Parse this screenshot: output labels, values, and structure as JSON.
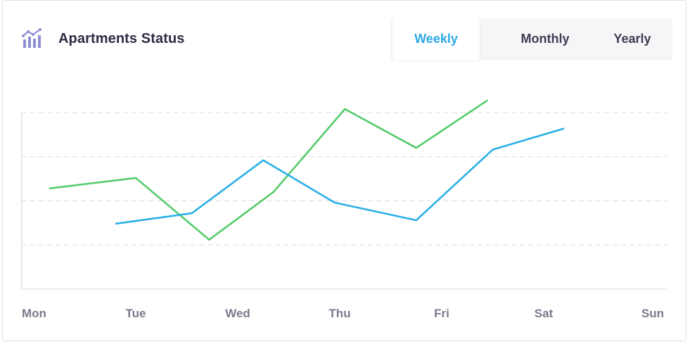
{
  "header": {
    "title": "Apartments Status",
    "icon": "bar-chart-trend-icon"
  },
  "tabs": [
    {
      "label": "Weekly",
      "active": true
    },
    {
      "label": "Monthly",
      "active": false
    },
    {
      "label": "Yearly",
      "active": false
    }
  ],
  "colors": {
    "accent": "#2aa9e4",
    "series_blue": "#2ab0e6",
    "series_green": "#55cc6b",
    "grid": "#dcdce2",
    "icon": "#8f8fd4"
  },
  "chart_data": {
    "type": "line",
    "categories": [
      "Mon",
      "Tue",
      "Wed",
      "Thu",
      "Fri",
      "Sat",
      "Sun"
    ],
    "ylim": [
      0,
      100
    ],
    "grid": true,
    "series": [
      {
        "color": "#55cc6b",
        "x": [
          0.15,
          1.0,
          1.72,
          2.35,
          3.05,
          3.75,
          4.45
        ],
        "y": [
          57,
          63,
          28,
          55,
          102,
          80,
          107
        ]
      },
      {
        "color": "#2ab0e6",
        "x": [
          0.8,
          1.55,
          2.25,
          2.95,
          3.75,
          4.5,
          5.2
        ],
        "y": [
          37,
          43,
          73,
          49,
          39,
          79,
          91
        ]
      }
    ]
  }
}
